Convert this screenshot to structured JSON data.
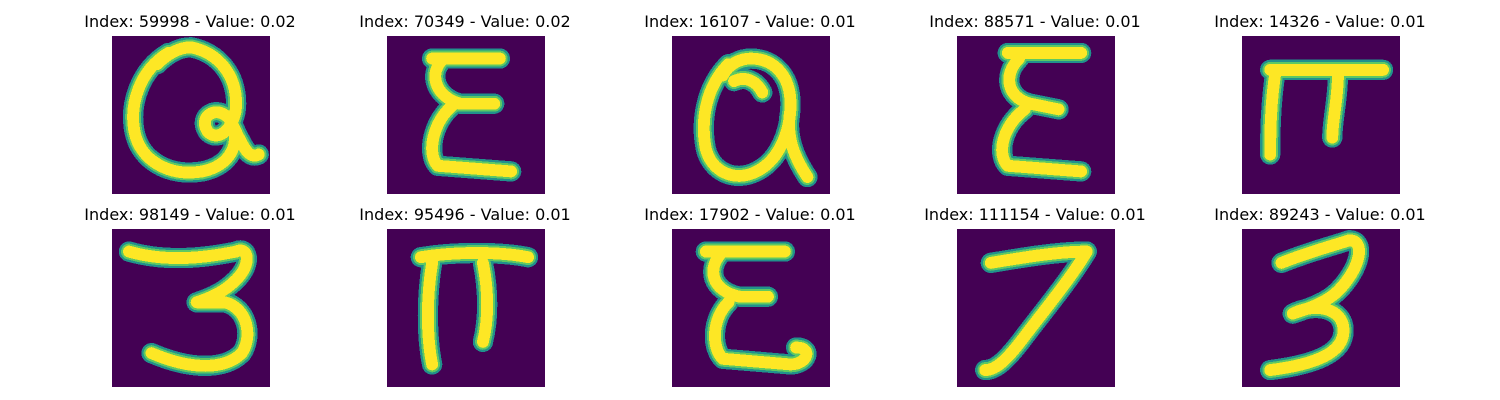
{
  "colors": {
    "background": "#440154",
    "stroke_edge": "#21918c",
    "stroke_mid": "#5ec962",
    "stroke_core": "#fde725"
  },
  "panels": [
    {
      "title": "Index: 59998 - Value: 0.02",
      "glyph": "a-loop-glyph"
    },
    {
      "title": "Index: 70349 - Value: 0.02",
      "glyph": "epsilon-glyph"
    },
    {
      "title": "Index: 16107 - Value: 0.01",
      "glyph": "a-loop-glyph"
    },
    {
      "title": "Index: 88571 - Value: 0.01",
      "glyph": "epsilon-glyph"
    },
    {
      "title": "Index: 14326 - Value: 0.01",
      "glyph": "pi-glyph"
    },
    {
      "title": "Index: 98149 - Value: 0.01",
      "glyph": "three-glyph"
    },
    {
      "title": "Index: 95496 - Value: 0.01",
      "glyph": "pi-glyph"
    },
    {
      "title": "Index: 17902 - Value: 0.01",
      "glyph": "epsilon-glyph"
    },
    {
      "title": "Index: 111154 - Value: 0.01",
      "glyph": "seven-glyph"
    },
    {
      "title": "Index: 89243 - Value: 0.01",
      "glyph": "three-glyph"
    }
  ]
}
